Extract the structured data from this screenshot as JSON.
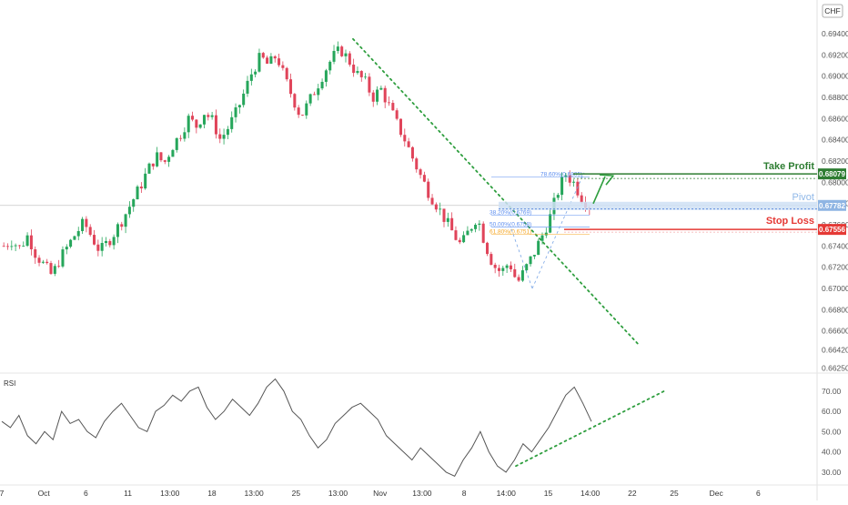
{
  "currency": "CHF",
  "panels": {
    "rsi_label": "RSI"
  },
  "levels": {
    "take_profit": {
      "label": "Take Profit",
      "price": 0.68079,
      "text": "0.68079",
      "color": "#2e7d32"
    },
    "pivot": {
      "label": "Pivot",
      "price": 0.67782,
      "text": "0.67782",
      "color": "#90b8e8"
    },
    "stop_loss": {
      "label": "Stop Loss",
      "price": 0.67556,
      "text": "0.67556",
      "color": "#e53935"
    }
  },
  "fib_labels": [
    {
      "text": "78.60%(0.6805)",
      "price": 0.6805,
      "color": "#5b8def"
    },
    {
      "text": "38.20%(0.6769)",
      "price": 0.6769,
      "color": "#5b8def"
    },
    {
      "text": "50.00%(0.6758)",
      "price": 0.6758,
      "color": "#5b8def"
    },
    {
      "text": "61.80%(0.6751)",
      "price": 0.6751,
      "color": "#f5a623"
    }
  ],
  "chart_data": {
    "type": "candlestick",
    "price_axis": {
      "ylim": [
        0.6622,
        0.697
      ],
      "ticks": [
        "0.69400",
        "0.69200",
        "0.69000",
        "0.68800",
        "0.68600",
        "0.68400",
        "0.68200",
        "0.68000",
        "0.67800",
        "0.67600",
        "0.67400",
        "0.67200",
        "0.67000",
        "0.66800",
        "0.66600",
        "0.66420",
        "0.66250"
      ]
    },
    "rsi_axis": {
      "ylim": [
        25,
        78
      ],
      "ticks": [
        "70.00",
        "60.00",
        "50.00",
        "40.00",
        "30.00"
      ]
    },
    "time_axis": [
      "7",
      "Oct",
      "6",
      "11",
      "13:00",
      "18",
      "13:00",
      "25",
      "13:00",
      "Nov",
      "13:00",
      "8",
      "14:00",
      "15",
      "14:00",
      "22",
      "25",
      "Dec",
      "6"
    ],
    "current_price": 0.67782,
    "price_path": [
      0.674,
      0.6745,
      0.6738,
      0.675,
      0.6732,
      0.6722,
      0.6712,
      0.6728,
      0.674,
      0.6752,
      0.6762,
      0.6748,
      0.6735,
      0.6744,
      0.6755,
      0.6768,
      0.6782,
      0.6796,
      0.6812,
      0.6825,
      0.6818,
      0.6834,
      0.6845,
      0.686,
      0.6853,
      0.6866,
      0.6858,
      0.684,
      0.6852,
      0.6866,
      0.6885,
      0.6905,
      0.6918,
      0.691,
      0.692,
      0.6898,
      0.688,
      0.6862,
      0.6875,
      0.689,
      0.6905,
      0.6918,
      0.6925,
      0.6915,
      0.6902,
      0.6895,
      0.688,
      0.6888,
      0.6872,
      0.6855,
      0.684,
      0.6822,
      0.6805,
      0.679,
      0.6778,
      0.6765,
      0.6752,
      0.674,
      0.6755,
      0.6768,
      0.6742,
      0.6722,
      0.6715,
      0.6725,
      0.6705,
      0.6718,
      0.6732,
      0.6748,
      0.6765,
      0.679,
      0.6808,
      0.68,
      0.6786,
      0.6778
    ],
    "rsi_path": [
      55,
      52,
      58,
      48,
      44,
      50,
      46,
      60,
      54,
      56,
      50,
      47,
      55,
      60,
      64,
      58,
      52,
      50,
      60,
      63,
      68,
      65,
      70,
      72,
      62,
      56,
      60,
      66,
      62,
      58,
      64,
      72,
      76,
      70,
      60,
      56,
      48,
      42,
      46,
      54,
      58,
      62,
      64,
      60,
      56,
      48,
      44,
      40,
      36,
      42,
      38,
      34,
      30,
      28,
      36,
      42,
      50,
      40,
      33,
      30,
      36,
      44,
      40,
      46,
      52,
      60,
      68,
      72,
      64,
      55
    ],
    "annotations": {
      "downtrend_line": {
        "from_price": 0.6935,
        "to_price": 0.6647
      },
      "rsi_support_line": {
        "from": 33,
        "to": 70
      }
    }
  }
}
